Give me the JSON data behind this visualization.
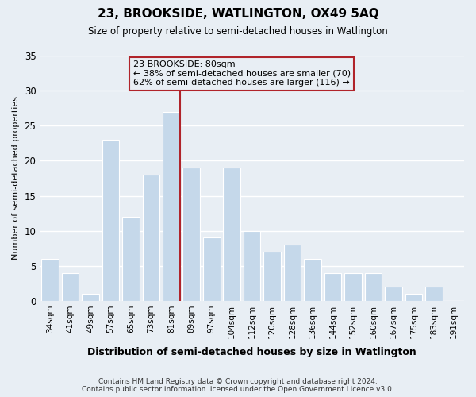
{
  "title": "23, BROOKSIDE, WATLINGTON, OX49 5AQ",
  "subtitle": "Size of property relative to semi-detached houses in Watlington",
  "xlabel": "Distribution of semi-detached houses by size in Watlington",
  "ylabel": "Number of semi-detached properties",
  "categories": [
    "34sqm",
    "41sqm",
    "49sqm",
    "57sqm",
    "65sqm",
    "73sqm",
    "81sqm",
    "89sqm",
    "97sqm",
    "104sqm",
    "112sqm",
    "120sqm",
    "128sqm",
    "136sqm",
    "144sqm",
    "152sqm",
    "160sqm",
    "167sqm",
    "175sqm",
    "183sqm",
    "191sqm"
  ],
  "values": [
    6,
    4,
    1,
    23,
    12,
    18,
    27,
    19,
    9,
    19,
    10,
    7,
    8,
    6,
    4,
    4,
    4,
    2,
    1,
    2,
    0
  ],
  "bar_color": "#c5d8ea",
  "highlight_bar_index": 6,
  "highlight_color": "#b0232a",
  "ylim": [
    0,
    35
  ],
  "yticks": [
    0,
    5,
    10,
    15,
    20,
    25,
    30,
    35
  ],
  "annotation_title": "23 BROOKSIDE: 80sqm",
  "annotation_line1": "← 38% of semi-detached houses are smaller (70)",
  "annotation_line2": "62% of semi-detached houses are larger (116) →",
  "footer1": "Contains HM Land Registry data © Crown copyright and database right 2024.",
  "footer2": "Contains public sector information licensed under the Open Government Licence v3.0.",
  "background_color": "#e8eef4",
  "grid_color": "#ffffff"
}
